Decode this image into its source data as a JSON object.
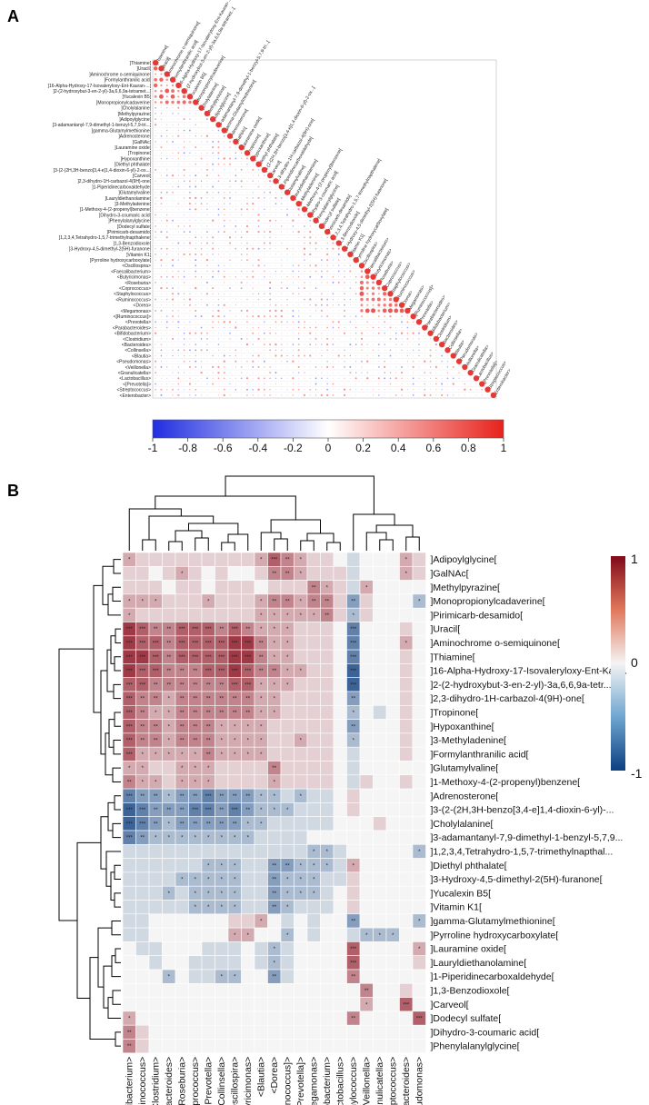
{
  "colors": {
    "positive": "#e53935",
    "negative": "#2233ee",
    "heat_pos": "#8b0a1a",
    "heat_neg": "#0d3f80",
    "heat_mid": "#f5f5f5",
    "grid": "#dddddd"
  },
  "panel_a": {
    "label": "A",
    "row_labels": [
      "]Thiamine[",
      "]Uracil[",
      "]Aminochrome o-semiquinone[",
      "]Formylanthranilic acid[",
      "]16-Alpha-Hydroxy-17-Isovaleryloxy-Ent-Kauran-...[",
      "]2-(2-hydroxybut-3-en-2-yl)-3a,6,6,9a-tetramet...[",
      "]Yucalexin B5[",
      "]Monopropionylcadaverine[",
      "]Cholylalanine[",
      "]Methylpyrazine[",
      "]Adipoylglycine[",
      "]3-adamantanyl-7,9-dimethyl-1-benzyl-5,7,9-tri...[",
      "]gamma-Glutamylmethionine[",
      "]Adrenosterone[",
      "]GalNAc[",
      "]Lauramine oxide[",
      "]Tropinone[",
      "]Hypoxanthine[",
      "]Diethyl phthalate[",
      "]3-(2-(2H,3H-benzo[3,4-e]1,4-dioxin-6-yl)-2-ox...[",
      "]Carveol[",
      "]2,3-dihydro-1H-carbazol-4(9H)-one[",
      "]1-Piperidinecarboxaldehyde[",
      "]Glutamylvaline[",
      "]Lauryldiethanolamine[",
      "]3-Methyladenine[",
      "]1-Methoxy-4-(2-propenyl)benzene[",
      "]Dihydro-3-coumaric acid[",
      "]Phenylalanylglycine[",
      "]Dodecyl sulfate[",
      "]Pirimicarb-desamido[",
      "]1,2,3,4,Tetrahydro-1,5,7-trimethylnapthalene[",
      "]1,3-Benzodioxole[",
      "]3-Hydroxy-4,5-dimethyl-2(5H)-furanone[",
      "]Vitamin K1[",
      "]Pyrroline hydroxycarboxylate[",
      "<Oscillospira>",
      "<Faecalibacterium>",
      "<Butyricimonas>",
      "<Roseburia>",
      "<Coprococcus>",
      "<Staphylococcus>",
      "<Ruminococcus>",
      "<Dorea>",
      "<Megamonas>",
      "<[Ruminococcus]>",
      "<Prevotella>",
      "<Parabacteroides>",
      "<Bifidobacterium>",
      "<Clostridium>",
      "<Bacteroides>",
      "<Collinsella>",
      "<Blautia>",
      "<Pseudomonas>",
      "<Veillonella>",
      "<Granulicatella>",
      "<Lactobacillus>",
      "<[Prevotella]>",
      "<Streptococcus>",
      "<Enterobacter>"
    ],
    "colorbar_ticks": [
      "-1",
      "-0.8",
      "-0.6",
      "-0.4",
      "-0.2",
      "0",
      "0.2",
      "0.4",
      "0.6",
      "0.8",
      "1"
    ]
  },
  "chart_data": [
    {
      "type": "heatmap",
      "title": "Correlation matrix of metabolites and genera",
      "panel": "A",
      "value_range": [
        -1,
        1
      ],
      "legend_position": "bottom",
      "note": "lower-triangle correlation circles; size and colour encode coefficient"
    },
    {
      "type": "heatmap",
      "title": "Genus vs metabolite correlation heatmap",
      "panel": "B",
      "value_range": [
        -1,
        1
      ],
      "legend_position": "top-right",
      "colorbar_ticks": [
        "1",
        "0",
        "-1"
      ],
      "columns": [
        "<Faecalibacterium>",
        "<Ruminococcus>",
        "<Clostridium>",
        "<Parabacteroides>",
        "<Roseburia>",
        "<Coprococcus>",
        "<Prevotella>",
        "<Collinsella>",
        "<Oscillospira>",
        "<Butyricimonas>",
        "<Blautia>",
        "<Dorea>",
        "<[Ruminococcus]>",
        "<[Prevotella]>",
        "<Megamonas>",
        "<Bifidobacterium>",
        "<Lactobacillus>",
        "<Staphylococcus>",
        "<Veillonella>",
        "<Granulicatella>",
        "<Streptococcus>",
        "<Bacteroides>",
        "<Pseudomonas>"
      ],
      "rows": [
        "]Adipoylglycine[",
        "]GalNAc[",
        "]Methylpyrazine[",
        "]Monopropionylcadaverine[",
        "]Pirimicarb-desamido[",
        "]Uracil[",
        "]Aminochrome o-semiquinone[",
        "]Thiamine[",
        "]16-Alpha-Hydroxy-17-Isovaleryloxy-Ent-Kau...",
        "]2-(2-hydroxybut-3-en-2-yl)-3a,6,6,9a-tetr...",
        "]2,3-dihydro-1H-carbazol-4(9H)-one[",
        "]Tropinone[",
        "]Hypoxanthine[",
        "]3-Methyladenine[",
        "]Formylanthranilic acid[",
        "]Glutamylvaline[",
        "]1-Methoxy-4-(2-propenyl)benzene[",
        "]Adrenosterone[",
        "]3-(2-(2H,3H-benzo[3,4-e]1,4-dioxin-6-yl)-...",
        "]Cholylalanine[",
        "]3-adamantanyl-7,9-dimethyl-1-benzyl-5,7,9...",
        "]1,2,3,4,Tetrahydro-1,5,7-trimethylnapthal...",
        "]Diethyl phthalate[",
        "]3-Hydroxy-4,5-dimethyl-2(5H)-furanone[",
        "]Yucalexin B5[",
        "]Vitamin K1[",
        "]gamma-Glutamylmethionine[",
        "]Pyrroline hydroxycarboxylate[",
        "]Lauramine oxide[",
        "]Lauryldiethanolamine[",
        "]1-Piperidinecarboxaldehyde[",
        "]1,3-Benzodioxole[",
        "]Carveol[",
        "]Dodecyl sulfate[",
        "]Dihydro-3-coumaric acid[",
        "]Phenylalanylglycine["
      ],
      "row_profiles": [
        [
          0.2,
          0.1,
          0.1,
          0.1,
          0.1,
          0.1,
          0.1,
          0.1,
          0.1,
          0.1,
          0.2,
          0.4,
          0.3,
          0.2,
          0.1,
          0.1,
          0,
          -0.1,
          0,
          0,
          0,
          0.2,
          0.1
        ],
        [
          0.1,
          0.1,
          0,
          0.1,
          0.2,
          0.1,
          0,
          0.1,
          0,
          0,
          0.1,
          0.3,
          0.3,
          0.2,
          0.1,
          0.1,
          0.1,
          -0.1,
          0,
          0,
          0,
          0.2,
          0.1
        ],
        [
          0.1,
          0.1,
          0.1,
          0,
          0.1,
          0.1,
          0,
          0.1,
          0.1,
          0.1,
          0,
          0.1,
          0.1,
          0.1,
          0.3,
          0.2,
          0.1,
          -0.1,
          0.2,
          0,
          0,
          0,
          0
        ],
        [
          0.2,
          0.2,
          0.2,
          0.1,
          0.1,
          0.1,
          0.2,
          0.1,
          0.1,
          0.1,
          0.2,
          0.3,
          0.3,
          0.2,
          0.3,
          0.3,
          0.1,
          -0.3,
          0.1,
          0,
          0,
          0,
          -0.2
        ],
        [
          0.2,
          0.1,
          0.1,
          0.1,
          0.1,
          0.1,
          0.1,
          0.1,
          0.1,
          0.1,
          0.2,
          0.2,
          0.2,
          0.2,
          0.2,
          0.3,
          0.1,
          -0.2,
          0.1,
          0,
          0,
          0,
          0
        ],
        [
          0.5,
          0.4,
          0.3,
          0.3,
          0.4,
          0.4,
          0.4,
          0.3,
          0.4,
          0.3,
          0.2,
          0.2,
          0.2,
          0.1,
          0.1,
          0.1,
          0,
          -0.4,
          0,
          0,
          0,
          0.1,
          0
        ],
        [
          0.5,
          0.4,
          0.4,
          0.3,
          0.4,
          0.4,
          0.4,
          0.4,
          0.5,
          0.5,
          0.3,
          0.2,
          0.2,
          0.1,
          0.1,
          0.1,
          0,
          -0.4,
          0,
          0,
          0,
          0.2,
          0
        ],
        [
          0.5,
          0.5,
          0.4,
          0.3,
          0.4,
          0.4,
          0.4,
          0.4,
          0.5,
          0.5,
          0.3,
          0.2,
          0.2,
          0.1,
          0.1,
          0.1,
          0,
          -0.4,
          0,
          0,
          0,
          0.1,
          0
        ],
        [
          0.5,
          0.4,
          0.4,
          0.3,
          0.3,
          0.3,
          0.4,
          0.4,
          0.5,
          0.4,
          0.3,
          0.3,
          0.2,
          0.2,
          0.1,
          0.1,
          0,
          -0.5,
          0,
          0,
          0,
          0.1,
          0
        ],
        [
          0.4,
          0.4,
          0.3,
          0.3,
          0.3,
          0.3,
          0.3,
          0.3,
          0.4,
          0.4,
          0.2,
          0.2,
          0.2,
          0.1,
          0.1,
          0.1,
          0,
          -0.5,
          0,
          0,
          0,
          0.1,
          0
        ],
        [
          0.4,
          0.3,
          0.3,
          0.2,
          0.3,
          0.3,
          0.3,
          0.3,
          0.3,
          0.3,
          0.2,
          0.2,
          0.1,
          0.1,
          0.1,
          0.1,
          0,
          -0.3,
          0,
          0,
          0,
          0.1,
          0
        ],
        [
          0.4,
          0.3,
          0.2,
          0.2,
          0.3,
          0.3,
          0.3,
          0.3,
          0.3,
          0.3,
          0.2,
          0.2,
          0.1,
          0.1,
          0.1,
          0.1,
          0,
          -0.2,
          0,
          -0.1,
          0,
          0.1,
          0
        ],
        [
          0.4,
          0.3,
          0.3,
          0.2,
          0.3,
          0.3,
          0.3,
          0.2,
          0.2,
          0.2,
          0.2,
          0.1,
          0.1,
          0.1,
          0.1,
          0.1,
          0,
          -0.3,
          0,
          0,
          0,
          0.1,
          0
        ],
        [
          0.4,
          0.3,
          0.3,
          0.2,
          0.3,
          0.3,
          0.3,
          0.2,
          0.2,
          0.2,
          0.2,
          0.1,
          0.1,
          0.2,
          0.1,
          0.1,
          0,
          -0.2,
          0,
          0,
          0,
          0.1,
          0
        ],
        [
          0.4,
          0.2,
          0.2,
          0.2,
          0.2,
          0.2,
          0.3,
          0.2,
          0.2,
          0.2,
          0.2,
          0.1,
          0.1,
          0.1,
          0.1,
          0.1,
          0,
          -0.1,
          0,
          0,
          0,
          0.1,
          0
        ],
        [
          0.2,
          0.2,
          0.1,
          0.1,
          0.2,
          0.2,
          0.2,
          0.1,
          0.1,
          0.1,
          0.1,
          0.3,
          0.1,
          0.1,
          0.1,
          0.1,
          0,
          -0.1,
          0,
          0,
          0,
          0,
          0
        ],
        [
          0.3,
          0.2,
          0.2,
          0.1,
          0.2,
          0.2,
          0.2,
          0.1,
          0.1,
          0.1,
          0.1,
          0.2,
          0.1,
          0.1,
          0.1,
          0.1,
          0,
          -0.1,
          0.1,
          0,
          0,
          0.1,
          0
        ],
        [
          -0.4,
          -0.3,
          -0.3,
          -0.2,
          -0.3,
          -0.3,
          -0.4,
          -0.3,
          -0.3,
          -0.3,
          -0.2,
          -0.2,
          -0.1,
          -0.2,
          -0.1,
          -0.1,
          0,
          0.1,
          0,
          0,
          0,
          0,
          0
        ],
        [
          -0.5,
          -0.4,
          -0.3,
          -0.3,
          -0.3,
          -0.4,
          -0.4,
          -0.3,
          -0.4,
          -0.3,
          -0.2,
          -0.2,
          -0.2,
          -0.1,
          -0.1,
          -0.1,
          0,
          0.1,
          0,
          0,
          0,
          0,
          0
        ],
        [
          -0.5,
          -0.4,
          -0.3,
          -0.2,
          -0.3,
          -0.3,
          -0.3,
          -0.3,
          -0.3,
          -0.2,
          -0.2,
          -0.1,
          -0.1,
          -0.1,
          -0.1,
          -0.1,
          0,
          0,
          0,
          0.1,
          0,
          0,
          0
        ],
        [
          -0.4,
          -0.3,
          -0.2,
          -0.2,
          -0.2,
          -0.2,
          -0.2,
          -0.2,
          -0.2,
          -0.2,
          -0.1,
          -0.1,
          -0.1,
          -0.1,
          0,
          0,
          0,
          0,
          0,
          0,
          0,
          0,
          0
        ],
        [
          -0.1,
          -0.1,
          -0.1,
          -0.1,
          -0.1,
          -0.1,
          -0.1,
          -0.1,
          -0.1,
          -0.1,
          -0.1,
          -0.1,
          -0.1,
          -0.1,
          -0.2,
          -0.2,
          -0.1,
          0,
          0,
          0,
          0,
          0,
          -0.2
        ],
        [
          -0.1,
          -0.1,
          -0.1,
          -0.1,
          -0.1,
          -0.1,
          -0.2,
          -0.2,
          -0.2,
          -0.1,
          -0.1,
          -0.3,
          -0.3,
          -0.2,
          -0.2,
          -0.2,
          -0.1,
          0.2,
          0,
          0,
          0,
          0,
          0
        ],
        [
          -0.1,
          -0.1,
          -0.1,
          -0.1,
          -0.2,
          -0.2,
          -0.2,
          -0.2,
          -0.2,
          -0.1,
          -0.1,
          -0.3,
          -0.2,
          -0.2,
          -0.2,
          -0.1,
          -0.1,
          0.1,
          0,
          0,
          0,
          0,
          0
        ],
        [
          -0.1,
          -0.1,
          -0.1,
          -0.2,
          -0.1,
          -0.2,
          -0.2,
          -0.2,
          -0.2,
          -0.1,
          -0.1,
          -0.3,
          -0.2,
          -0.2,
          -0.2,
          -0.1,
          0,
          0.1,
          0,
          0,
          0,
          0,
          0
        ],
        [
          -0.1,
          -0.1,
          -0.1,
          -0.1,
          -0.1,
          -0.2,
          -0.2,
          -0.2,
          -0.2,
          -0.1,
          -0.1,
          -0.3,
          -0.2,
          -0.1,
          -0.1,
          -0.1,
          0,
          0.1,
          0,
          0,
          0,
          0,
          0
        ],
        [
          -0.1,
          -0.1,
          0,
          0,
          0,
          0,
          0,
          0,
          0.1,
          0.1,
          0.2,
          0,
          -0.1,
          0,
          -0.1,
          0,
          0,
          -0.3,
          0,
          0,
          0,
          0,
          -0.2
        ],
        [
          -0.1,
          -0.1,
          0,
          0,
          0,
          0,
          0,
          0,
          0.2,
          0.2,
          0,
          0,
          -0.2,
          0,
          -0.1,
          0,
          0,
          -0.1,
          -0.2,
          -0.2,
          -0.2,
          0,
          0
        ],
        [
          0,
          -0.1,
          -0.1,
          0,
          0,
          0,
          -0.1,
          -0.1,
          -0.1,
          0,
          -0.1,
          -0.2,
          -0.1,
          0,
          0,
          0,
          0,
          0.4,
          0,
          0,
          0,
          0,
          0.2
        ],
        [
          0,
          0,
          -0.1,
          0,
          0,
          -0.1,
          -0.1,
          -0.1,
          -0.1,
          0,
          -0.1,
          -0.2,
          -0.1,
          0,
          0,
          0,
          0,
          0.4,
          0,
          0,
          0,
          0,
          0.1
        ],
        [
          0,
          0,
          0,
          -0.2,
          0,
          -0.1,
          -0.1,
          -0.2,
          -0.2,
          0,
          0,
          -0.3,
          -0.1,
          0,
          0,
          0,
          0,
          0.3,
          0,
          0,
          0,
          0,
          0
        ],
        [
          0,
          0,
          0,
          0,
          0,
          0,
          0,
          0,
          0,
          0,
          0,
          0,
          0,
          0,
          0,
          0,
          0,
          0,
          0.3,
          0,
          0,
          0.1,
          0
        ],
        [
          0,
          0,
          0,
          0,
          0,
          0,
          0,
          0,
          0,
          0,
          0,
          0,
          0,
          0,
          0,
          0,
          0,
          0,
          0.2,
          0,
          0,
          0.4,
          0
        ],
        [
          0.2,
          0,
          0,
          0,
          0,
          0,
          0,
          0,
          0,
          0,
          0,
          0,
          0,
          0,
          0,
          0,
          0,
          0.3,
          0,
          0,
          0,
          0,
          0.4
        ],
        [
          0.3,
          0.1,
          0,
          0,
          0,
          0,
          0,
          0,
          0,
          0,
          0,
          0,
          0,
          0,
          0,
          0,
          0,
          0,
          0,
          0,
          0,
          0,
          0
        ],
        [
          0.3,
          0.1,
          0,
          0,
          0,
          0,
          0,
          0,
          0,
          0,
          0,
          0,
          0,
          0,
          0,
          0,
          0,
          0,
          0,
          0,
          0,
          0,
          0
        ]
      ]
    }
  ],
  "panel_b": {
    "label": "B",
    "colorbar_ticks": [
      "1",
      "0",
      "-1"
    ]
  }
}
